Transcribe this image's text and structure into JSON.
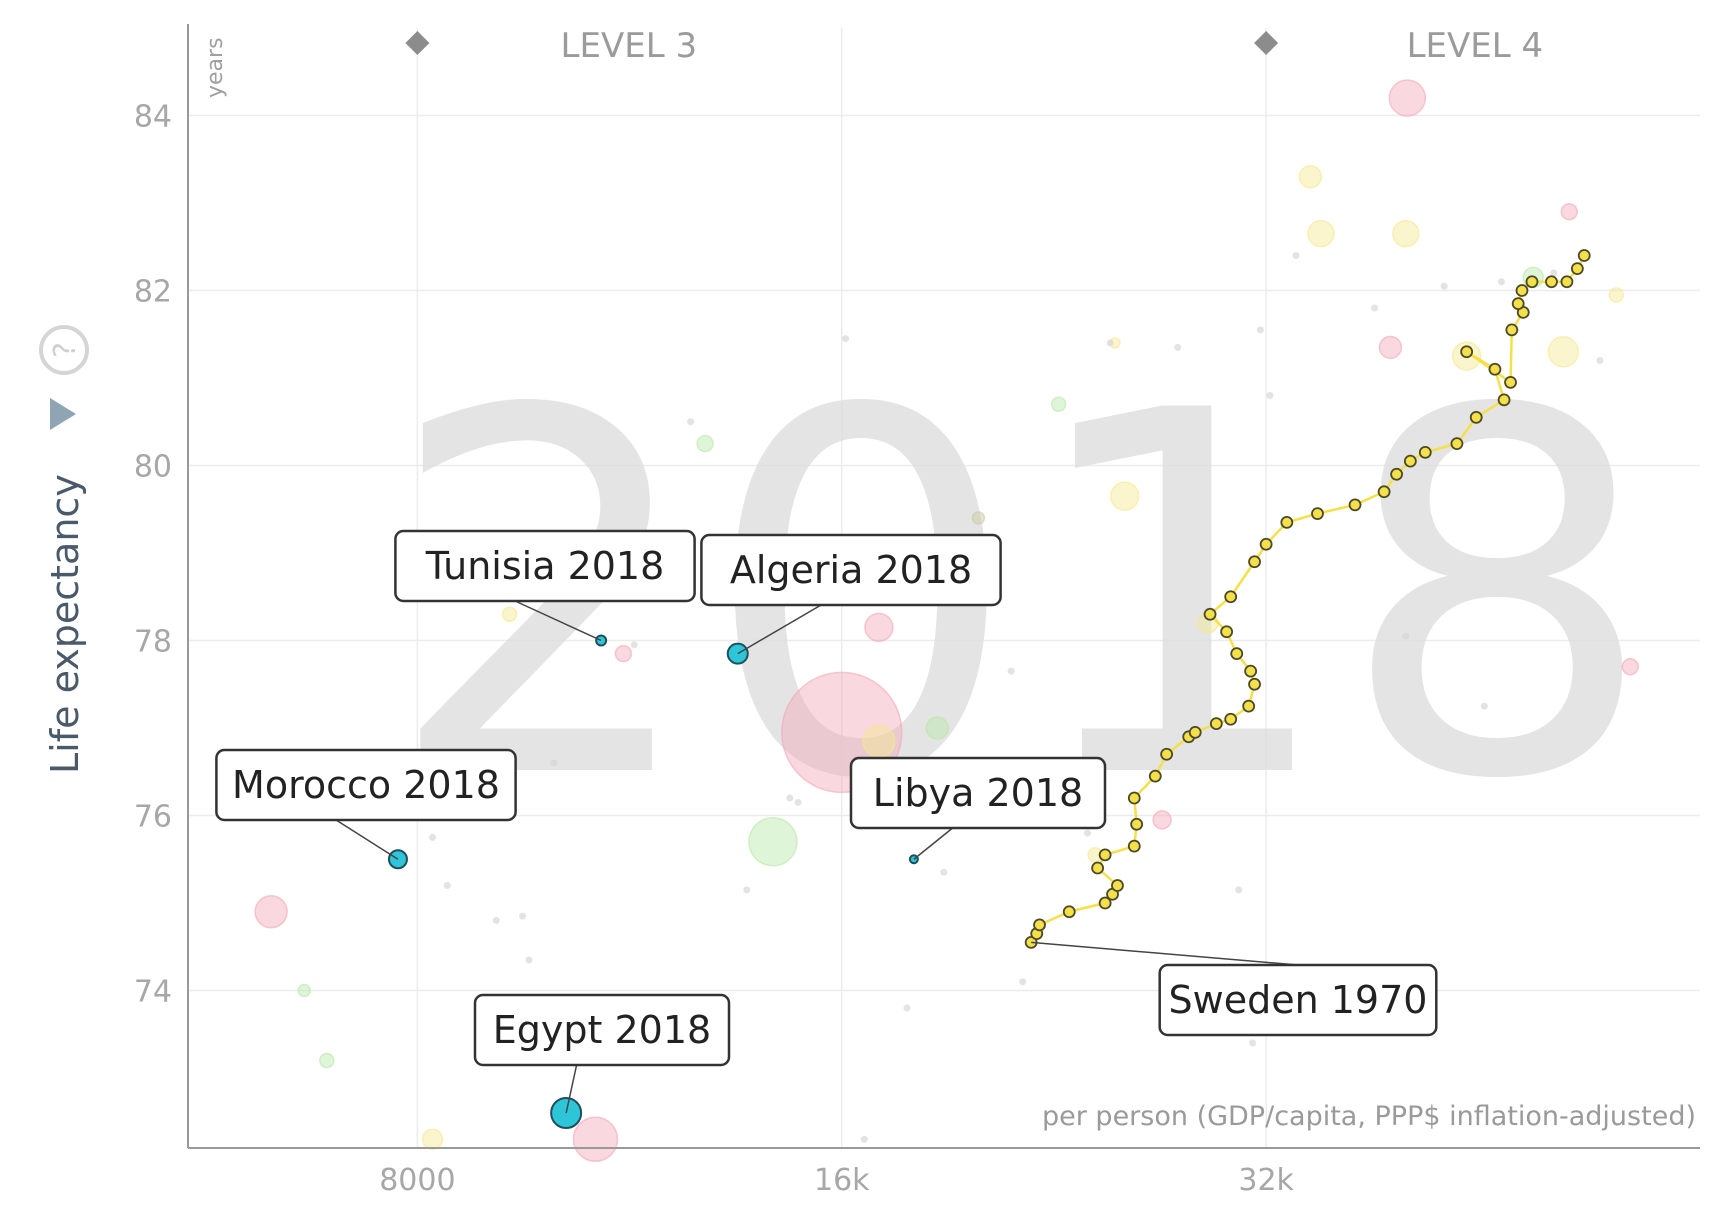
{
  "chart_data": {
    "type": "scatter",
    "title": "",
    "watermark_year": "2018",
    "ylabel": "Life expectancy",
    "yunit": "years",
    "xlabel": "",
    "xunit": "per person (GDP/capita, PPP$ inflation-adjusted)",
    "xscale": "log",
    "xlim": [
      5500,
      65000
    ],
    "ylim": [
      72.2,
      85
    ],
    "xticks": [
      {
        "value": 8000,
        "label": "8000"
      },
      {
        "value": 16000,
        "label": "16k"
      },
      {
        "value": 32000,
        "label": "32k"
      }
    ],
    "yticks": [
      {
        "value": 74,
        "label": "74"
      },
      {
        "value": 76,
        "label": "76"
      },
      {
        "value": 78,
        "label": "78"
      },
      {
        "value": 80,
        "label": "80"
      },
      {
        "value": 82,
        "label": "82"
      },
      {
        "value": 84,
        "label": "84"
      }
    ],
    "levels": [
      {
        "label": "LEVEL 3",
        "x": 11300
      },
      {
        "label": "LEVEL 4",
        "x": 45000
      }
    ],
    "level_markers_x": [
      8000,
      32000
    ],
    "grid": true,
    "highlighted": [
      {
        "name": "Tunisia 2018",
        "x": 10800,
        "y": 78.0,
        "r": 5
      },
      {
        "name": "Algeria 2018",
        "x": 13500,
        "y": 77.85,
        "r": 10
      },
      {
        "name": "Morocco 2018",
        "x": 7750,
        "y": 75.5,
        "r": 9
      },
      {
        "name": "Libya 2018",
        "x": 18000,
        "y": 75.5,
        "r": 4
      },
      {
        "name": "Egypt 2018",
        "x": 10200,
        "y": 72.6,
        "r": 15
      }
    ],
    "trail": {
      "name": "Sweden 1970",
      "color": "#f5e04a",
      "points": [
        [
          21800,
          74.55
        ],
        [
          22000,
          74.65
        ],
        [
          22100,
          74.75
        ],
        [
          23200,
          74.9
        ],
        [
          24600,
          75.0
        ],
        [
          24900,
          75.1
        ],
        [
          25100,
          75.2
        ],
        [
          24300,
          75.4
        ],
        [
          24600,
          75.55
        ],
        [
          25800,
          75.65
        ],
        [
          25900,
          75.9
        ],
        [
          25800,
          76.2
        ],
        [
          26700,
          76.45
        ],
        [
          27200,
          76.7
        ],
        [
          28200,
          76.9
        ],
        [
          28500,
          76.95
        ],
        [
          29500,
          77.05
        ],
        [
          30200,
          77.1
        ],
        [
          31100,
          77.25
        ],
        [
          31400,
          77.5
        ],
        [
          31200,
          77.65
        ],
        [
          30500,
          77.85
        ],
        [
          30000,
          78.1
        ],
        [
          29200,
          78.3
        ],
        [
          30200,
          78.5
        ],
        [
          31400,
          78.9
        ],
        [
          32000,
          79.1
        ],
        [
          33100,
          79.35
        ],
        [
          34800,
          79.45
        ],
        [
          37000,
          79.55
        ],
        [
          38800,
          79.7
        ],
        [
          39600,
          79.9
        ],
        [
          40500,
          80.05
        ],
        [
          41500,
          80.15
        ],
        [
          43700,
          80.25
        ],
        [
          45100,
          80.55
        ],
        [
          47200,
          80.75
        ],
        [
          46500,
          81.1
        ],
        [
          44400,
          81.3
        ],
        [
          47700,
          80.95
        ],
        [
          47800,
          81.55
        ],
        [
          48700,
          81.75
        ],
        [
          48300,
          81.85
        ],
        [
          48600,
          82.0
        ],
        [
          49400,
          82.1
        ],
        [
          51000,
          82.1
        ],
        [
          52300,
          82.1
        ],
        [
          53200,
          82.25
        ],
        [
          53800,
          82.4
        ]
      ]
    },
    "background_bubbles": [
      {
        "x": 16000,
        "y": 76.95,
        "r": 60,
        "color": "#f2a8b8"
      },
      {
        "x": 6300,
        "y": 74.9,
        "r": 16,
        "color": "#f2a8b8"
      },
      {
        "x": 14300,
        "y": 75.7,
        "r": 24,
        "color": "#b8e8a8"
      },
      {
        "x": 17000,
        "y": 76.85,
        "r": 16,
        "color": "#f5e890"
      },
      {
        "x": 17000,
        "y": 78.15,
        "r": 14,
        "color": "#f2a8b8"
      },
      {
        "x": 18700,
        "y": 77.0,
        "r": 11,
        "color": "#b8e8a8"
      },
      {
        "x": 27000,
        "y": 75.95,
        "r": 9,
        "color": "#f2a8b8"
      },
      {
        "x": 25400,
        "y": 79.65,
        "r": 14,
        "color": "#f5e890"
      },
      {
        "x": 29100,
        "y": 78.2,
        "r": 10,
        "color": "#f5e890"
      },
      {
        "x": 35000,
        "y": 82.65,
        "r": 13,
        "color": "#f5e890"
      },
      {
        "x": 34400,
        "y": 83.3,
        "r": 11,
        "color": "#f5e890"
      },
      {
        "x": 40200,
        "y": 82.65,
        "r": 13,
        "color": "#f5e890"
      },
      {
        "x": 40300,
        "y": 84.2,
        "r": 18,
        "color": "#f2a8b8"
      },
      {
        "x": 44400,
        "y": 81.25,
        "r": 14,
        "color": "#f5e890"
      },
      {
        "x": 52000,
        "y": 81.3,
        "r": 15,
        "color": "#f5e890"
      },
      {
        "x": 39200,
        "y": 81.35,
        "r": 11,
        "color": "#f2a8b8"
      },
      {
        "x": 49500,
        "y": 82.15,
        "r": 10,
        "color": "#b8e8a8"
      },
      {
        "x": 52500,
        "y": 82.9,
        "r": 8,
        "color": "#f2a8b8"
      },
      {
        "x": 12800,
        "y": 80.25,
        "r": 8,
        "color": "#b8e8a8"
      },
      {
        "x": 10700,
        "y": 72.3,
        "r": 22,
        "color": "#f2a8b8"
      },
      {
        "x": 8200,
        "y": 72.3,
        "r": 10,
        "color": "#f5e890"
      },
      {
        "x": 9300,
        "y": 78.3,
        "r": 7,
        "color": "#f5e890"
      },
      {
        "x": 11200,
        "y": 77.85,
        "r": 8,
        "color": "#f2a8b8"
      },
      {
        "x": 6900,
        "y": 73.2,
        "r": 7,
        "color": "#b8e8a8"
      },
      {
        "x": 6650,
        "y": 74.0,
        "r": 6,
        "color": "#b8e8a8"
      },
      {
        "x": 22800,
        "y": 80.7,
        "r": 7,
        "color": "#b8e8a8"
      },
      {
        "x": 24200,
        "y": 75.55,
        "r": 7,
        "color": "#f5e890"
      },
      {
        "x": 58000,
        "y": 77.7,
        "r": 8,
        "color": "#f2a8b8"
      },
      {
        "x": 56700,
        "y": 81.95,
        "r": 7,
        "color": "#f5e890"
      },
      {
        "x": 20000,
        "y": 79.4,
        "r": 6,
        "color": "#c9c9a0"
      },
      {
        "x": 25000,
        "y": 81.4,
        "r": 5,
        "color": "#f5e890"
      }
    ],
    "background_dots": [
      [
        8200,
        75.75
      ],
      [
        8400,
        75.2
      ],
      [
        9100,
        74.8
      ],
      [
        9500,
        74.85
      ],
      [
        9600,
        74.35
      ],
      [
        10000,
        76.6
      ],
      [
        11400,
        77.95
      ],
      [
        12500,
        80.5
      ],
      [
        13700,
        75.15
      ],
      [
        14700,
        76.2
      ],
      [
        14900,
        76.15
      ],
      [
        16100,
        81.45
      ],
      [
        16600,
        72.3
      ],
      [
        17800,
        73.8
      ],
      [
        18900,
        75.35
      ],
      [
        21100,
        77.65
      ],
      [
        21500,
        74.1
      ],
      [
        23900,
        75.8
      ],
      [
        24800,
        81.4
      ],
      [
        27700,
        81.35
      ],
      [
        29700,
        73.8
      ],
      [
        30600,
        75.15
      ],
      [
        31300,
        73.4
      ],
      [
        31700,
        81.55
      ],
      [
        32200,
        80.8
      ],
      [
        33600,
        82.4
      ],
      [
        38200,
        81.8
      ],
      [
        40200,
        78.05
      ],
      [
        42800,
        82.05
      ],
      [
        45700,
        77.25
      ],
      [
        47000,
        82.1
      ],
      [
        51200,
        82.2
      ],
      [
        55200,
        81.2
      ]
    ]
  }
}
